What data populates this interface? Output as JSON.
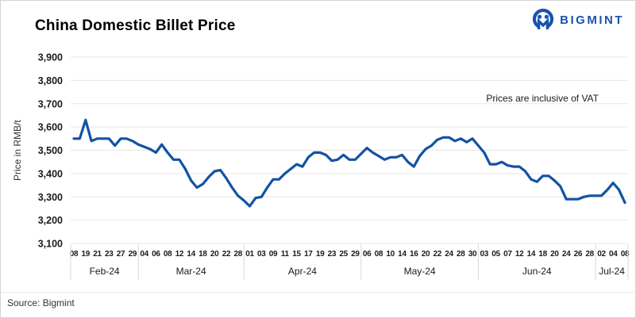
{
  "header": {
    "title": "China Domestic Billet Price",
    "brand": "BIGMINT"
  },
  "footer": {
    "source": "Source: Bigmint"
  },
  "colors": {
    "line": "#1252a3",
    "brand_blue": "#1a53ae",
    "gridline": "#e7e7e7",
    "divider": "#d9d9d9",
    "axis_text": "#1a1a1a"
  },
  "chart_data": {
    "type": "line",
    "title": "China Domestic Billet Price",
    "ylabel": "Price in RMB/t",
    "annotation": "Prices are inclusive of VAT",
    "ylim": [
      3100,
      3900
    ],
    "ytick_step": 100,
    "grid": true,
    "legend": "none",
    "sampling": "day tick labels mark every other data point; one interpolated point lies between consecutive labels",
    "x_axis": {
      "months": [
        {
          "label": "Feb-24",
          "days": [
            "08",
            "19",
            "21",
            "23",
            "27",
            "29"
          ]
        },
        {
          "label": "Mar-24",
          "days": [
            "04",
            "06",
            "08",
            "12",
            "14",
            "18",
            "20",
            "22",
            "28"
          ]
        },
        {
          "label": "Apr-24",
          "days": [
            "01",
            "03",
            "09",
            "11",
            "15",
            "17",
            "19",
            "23",
            "25",
            "29"
          ]
        },
        {
          "label": "May-24",
          "days": [
            "06",
            "08",
            "10",
            "14",
            "16",
            "20",
            "22",
            "24",
            "28",
            "30"
          ]
        },
        {
          "label": "Jun-24",
          "days": [
            "03",
            "05",
            "07",
            "12",
            "14",
            "18",
            "20",
            "24",
            "26",
            "28"
          ]
        },
        {
          "label": "Jul-24",
          "days": [
            "02",
            "04",
            "08"
          ]
        }
      ]
    },
    "values": [
      3550,
      3550,
      3630,
      3540,
      3550,
      3550,
      3550,
      3520,
      3550,
      3550,
      3540,
      3525,
      3515,
      3505,
      3490,
      3525,
      3490,
      3460,
      3460,
      3420,
      3370,
      3340,
      3355,
      3385,
      3410,
      3415,
      3380,
      3340,
      3305,
      3285,
      3260,
      3295,
      3300,
      3340,
      3375,
      3375,
      3400,
      3420,
      3440,
      3430,
      3470,
      3490,
      3490,
      3480,
      3455,
      3460,
      3480,
      3460,
      3460,
      3485,
      3510,
      3490,
      3475,
      3460,
      3470,
      3470,
      3480,
      3450,
      3430,
      3475,
      3505,
      3520,
      3545,
      3555,
      3555,
      3540,
      3550,
      3535,
      3550,
      3520,
      3490,
      3440,
      3440,
      3450,
      3435,
      3430,
      3430,
      3410,
      3375,
      3365,
      3390,
      3390,
      3370,
      3345,
      3290,
      3290,
      3290,
      3300,
      3305,
      3305,
      3305,
      3330,
      3360,
      3330,
      3275
    ]
  }
}
